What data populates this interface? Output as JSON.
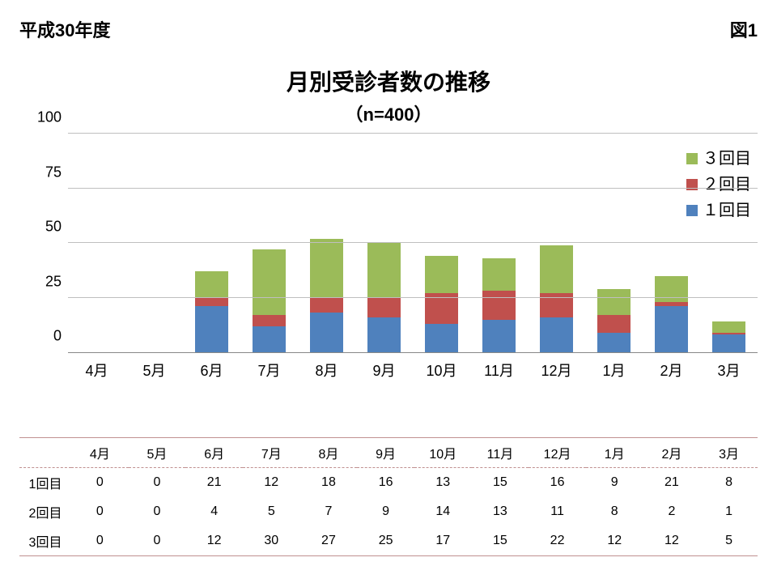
{
  "header": {
    "left": "平成30年度",
    "right": "図1"
  },
  "title": {
    "main": "月別受診者数の推移",
    "sub": "（n=400）"
  },
  "chart": {
    "type": "stacked-bar",
    "ylim": [
      0,
      100
    ],
    "yticks": [
      0,
      25,
      50,
      75,
      100
    ],
    "grid_color": "#bfbfbf",
    "axis_color": "#888888",
    "background_color": "#ffffff",
    "categories": [
      "4月",
      "5月",
      "6月",
      "7月",
      "8月",
      "9月",
      "10月",
      "11月",
      "12月",
      "1月",
      "2月",
      "3月"
    ],
    "series": [
      {
        "name": "１回目",
        "color": "#4f81bd"
      },
      {
        "name": "２回目",
        "color": "#c0504d"
      },
      {
        "name": "３回目",
        "color": "#9bbb59"
      }
    ],
    "data": {
      "s1": [
        0,
        0,
        21,
        12,
        18,
        16,
        13,
        15,
        16,
        9,
        21,
        8
      ],
      "s2": [
        0,
        0,
        4,
        5,
        7,
        9,
        14,
        13,
        11,
        8,
        2,
        1
      ],
      "s3": [
        0,
        0,
        12,
        30,
        27,
        25,
        17,
        15,
        22,
        12,
        12,
        5
      ]
    },
    "bar_width": 0.58,
    "label_fontsize": 18,
    "title_fontsize": 28,
    "legend_fontsize": 20
  },
  "table": {
    "border_color": "#c09090",
    "header_labels": [
      "",
      "4月",
      "5月",
      "6月",
      "7月",
      "8月",
      "9月",
      "10月",
      "11月",
      "12月",
      "1月",
      "2月",
      "3月"
    ],
    "rows": [
      {
        "label": "1回目",
        "values": [
          0,
          0,
          21,
          12,
          18,
          16,
          13,
          15,
          16,
          9,
          21,
          8
        ]
      },
      {
        "label": "2回目",
        "values": [
          0,
          0,
          4,
          5,
          7,
          9,
          14,
          13,
          11,
          8,
          2,
          1
        ]
      },
      {
        "label": "3回目",
        "values": [
          0,
          0,
          12,
          30,
          27,
          25,
          17,
          15,
          22,
          12,
          12,
          5
        ]
      }
    ]
  }
}
